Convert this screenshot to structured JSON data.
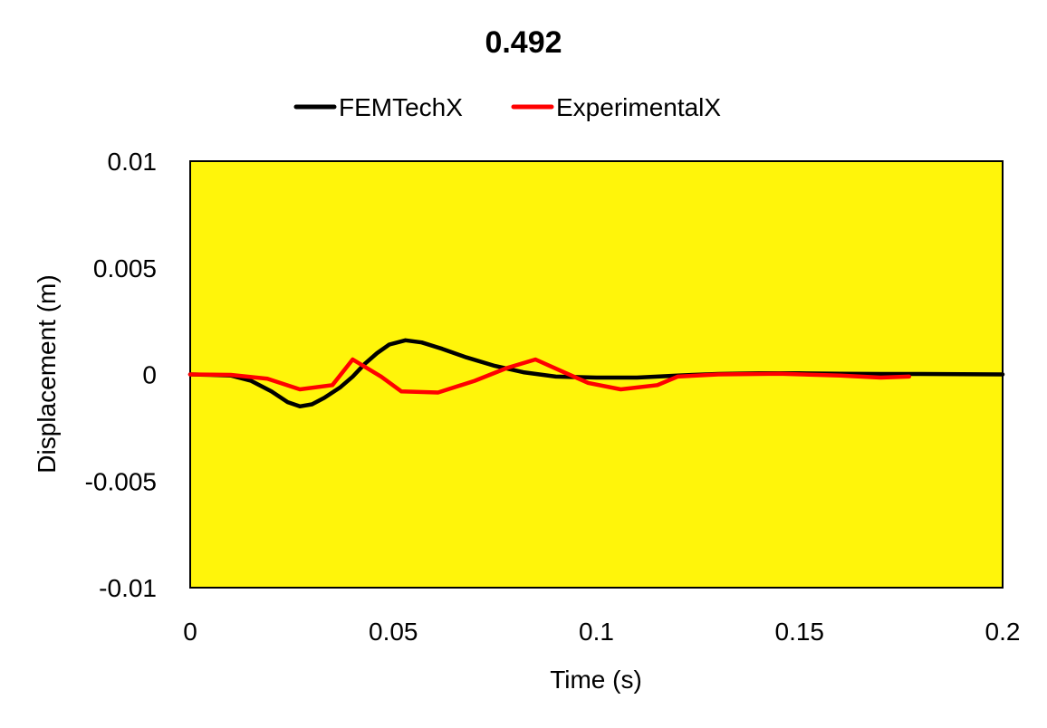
{
  "chart_data": {
    "type": "line",
    "title": "0.492",
    "xlabel": "Time (s)",
    "ylabel": "Displacement (m)",
    "xlim": [
      0,
      0.2
    ],
    "ylim": [
      -0.01,
      0.01
    ],
    "xticks": [
      0,
      0.05,
      0.1,
      0.15,
      0.2
    ],
    "xtick_labels": [
      "0",
      "0.05",
      "0.1",
      "0.15",
      "0.2"
    ],
    "yticks": [
      0.01,
      0.005,
      0,
      -0.005,
      -0.01
    ],
    "ytick_labels": [
      "0.01",
      "0.005",
      "0",
      "-0.005",
      "-0.01"
    ],
    "grid": false,
    "legend_position": "top",
    "plot_background": "#FFF50A",
    "series": [
      {
        "name": "FEMTechX",
        "color": "#000000",
        "points": [
          [
            0,
            0
          ],
          [
            0.005,
            -2e-05
          ],
          [
            0.01,
            -5e-05
          ],
          [
            0.015,
            -0.0003
          ],
          [
            0.02,
            -0.0008
          ],
          [
            0.024,
            -0.0013
          ],
          [
            0.027,
            -0.0015
          ],
          [
            0.03,
            -0.0014
          ],
          [
            0.033,
            -0.0011
          ],
          [
            0.037,
            -0.0006
          ],
          [
            0.04,
            -0.0001
          ],
          [
            0.043,
            0.0005
          ],
          [
            0.046,
            0.001
          ],
          [
            0.049,
            0.0014
          ],
          [
            0.053,
            0.0016
          ],
          [
            0.057,
            0.0015
          ],
          [
            0.062,
            0.0012
          ],
          [
            0.068,
            0.0008
          ],
          [
            0.075,
            0.0004
          ],
          [
            0.082,
            0.0001
          ],
          [
            0.09,
            -0.0001
          ],
          [
            0.1,
            -0.00015
          ],
          [
            0.11,
            -0.00015
          ],
          [
            0.12,
            -5e-05
          ],
          [
            0.13,
            2e-05
          ],
          [
            0.14,
            5e-05
          ],
          [
            0.15,
            5e-05
          ],
          [
            0.16,
            3e-05
          ],
          [
            0.17,
            2e-05
          ],
          [
            0.18,
            2e-05
          ],
          [
            0.19,
            1e-05
          ],
          [
            0.2,
            0
          ]
        ]
      },
      {
        "name": "ExperimentalX",
        "color": "#FF0000",
        "points": [
          [
            0,
            0
          ],
          [
            0.01,
            -2e-05
          ],
          [
            0.019,
            -0.0002
          ],
          [
            0.027,
            -0.0007
          ],
          [
            0.035,
            -0.0005
          ],
          [
            0.04,
            0.0007
          ],
          [
            0.047,
            -0.0001
          ],
          [
            0.052,
            -0.0008
          ],
          [
            0.061,
            -0.00085
          ],
          [
            0.07,
            -0.0003
          ],
          [
            0.078,
            0.0003
          ],
          [
            0.085,
            0.0007
          ],
          [
            0.092,
            0.0001
          ],
          [
            0.098,
            -0.0004
          ],
          [
            0.106,
            -0.0007
          ],
          [
            0.115,
            -0.0005
          ],
          [
            0.12,
            -0.0001
          ],
          [
            0.13,
            0
          ],
          [
            0.145,
            3e-05
          ],
          [
            0.16,
            -5e-05
          ],
          [
            0.17,
            -0.00015
          ],
          [
            0.177,
            -0.0001
          ]
        ]
      }
    ]
  }
}
